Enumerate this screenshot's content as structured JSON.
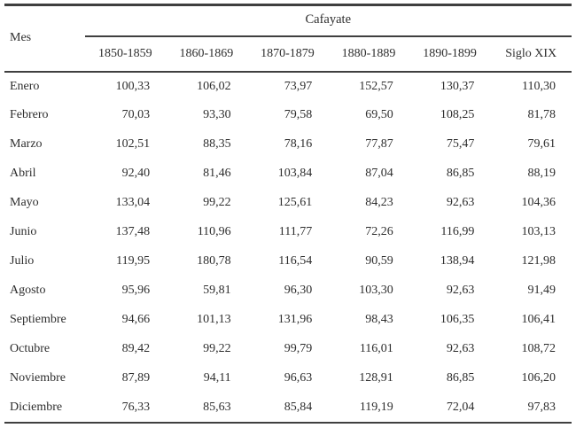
{
  "chart_data": {
    "type": "table",
    "title": "Cafayate",
    "row_header_label": "Mes",
    "columns": [
      "1850-1859",
      "1860-1869",
      "1870-1879",
      "1880-1889",
      "1890-1899",
      "Siglo XIX"
    ],
    "rows": [
      {
        "mes": "Enero",
        "values": [
          "100,33",
          "106,02",
          "73,97",
          "152,57",
          "130,37",
          "110,30"
        ]
      },
      {
        "mes": "Febrero",
        "values": [
          "70,03",
          "93,30",
          "79,58",
          "69,50",
          "108,25",
          "81,78"
        ]
      },
      {
        "mes": "Marzo",
        "values": [
          "102,51",
          "88,35",
          "78,16",
          "77,87",
          "75,47",
          "79,61"
        ]
      },
      {
        "mes": "Abril",
        "values": [
          "92,40",
          "81,46",
          "103,84",
          "87,04",
          "86,85",
          "88,19"
        ]
      },
      {
        "mes": "Mayo",
        "values": [
          "133,04",
          "99,22",
          "125,61",
          "84,23",
          "92,63",
          "104,36"
        ]
      },
      {
        "mes": "Junio",
        "values": [
          "137,48",
          "110,96",
          "111,77",
          "72,26",
          "116,99",
          "103,13"
        ]
      },
      {
        "mes": "Julio",
        "values": [
          "119,95",
          "180,78",
          "116,54",
          "90,59",
          "138,94",
          "121,98"
        ]
      },
      {
        "mes": "Agosto",
        "values": [
          "95,96",
          "59,81",
          "96,30",
          "103,30",
          "92,63",
          "91,49"
        ]
      },
      {
        "mes": "Septiembre",
        "values": [
          "94,66",
          "101,13",
          "131,96",
          "98,43",
          "106,35",
          "106,41"
        ]
      },
      {
        "mes": "Octubre",
        "values": [
          "89,42",
          "99,22",
          "99,79",
          "116,01",
          "92,63",
          "108,72"
        ]
      },
      {
        "mes": "Noviembre",
        "values": [
          "87,89",
          "94,11",
          "96,63",
          "128,91",
          "86,85",
          "106,20"
        ]
      },
      {
        "mes": "Diciembre",
        "values": [
          "76,33",
          "85,63",
          "85,84",
          "119,19",
          "72,04",
          "97,83"
        ]
      }
    ]
  }
}
